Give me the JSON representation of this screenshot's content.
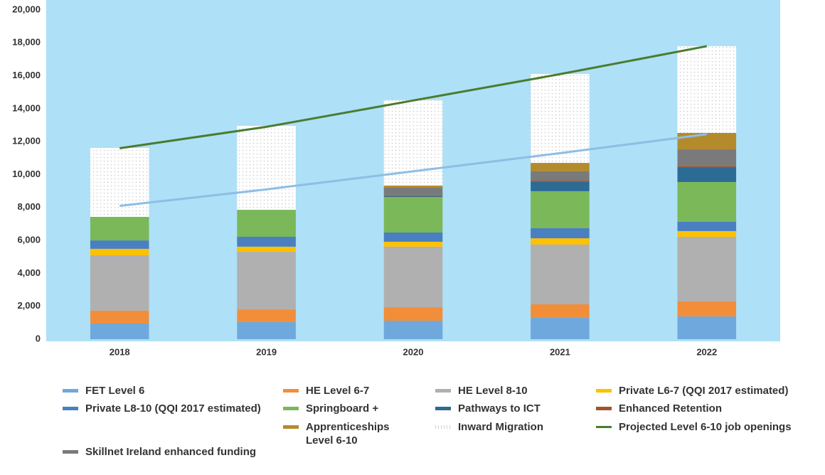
{
  "chart_data": {
    "type": "bar",
    "categories": [
      "2018",
      "2019",
      "2020",
      "2021",
      "2022"
    ],
    "ylim": [
      0,
      20000
    ],
    "yticks": [
      0,
      {
        "value": 2000,
        "label": "2,000"
      },
      {
        "value": 4000,
        "label": "4,000"
      },
      {
        "value": 6000,
        "label": "6,000"
      },
      {
        "value": 8000,
        "label": "8,000"
      },
      {
        "value": 10000,
        "label": "10,000"
      },
      {
        "value": 12000,
        "label": "12,000"
      },
      {
        "value": 14000,
        "label": "14,000"
      },
      {
        "value": 16000,
        "label": "16,000"
      },
      {
        "value": 18000,
        "label": "18,000"
      },
      {
        "value": 20000,
        "label": "20,000"
      }
    ],
    "grid": false,
    "background": "#aee0f7",
    "series": [
      {
        "name": "FET Level 6",
        "color": "#6fa8dc",
        "values": [
          950,
          1040,
          1120,
          1300,
          1380
        ]
      },
      {
        "name": "HE Level 6-7",
        "color": "#f28e3a",
        "values": [
          780,
          770,
          820,
          820,
          910
        ]
      },
      {
        "name": "HE Level 8-10",
        "color": "#b0b0b0",
        "values": [
          3370,
          3500,
          3680,
          3630,
          3930
        ]
      },
      {
        "name": "Private L6-7 (QQI 2017 estimated)",
        "color": "#ffc000",
        "values": [
          390,
          310,
          300,
          380,
          350
        ]
      },
      {
        "name": "Private L8-10 (QQI 2017 estimated)",
        "color": "#4a7fc1",
        "values": [
          510,
          600,
          560,
          610,
          560
        ]
      },
      {
        "name": "Springboard +",
        "color": "#7ab85a",
        "values": [
          1430,
          1640,
          2160,
          2250,
          2420
        ]
      },
      {
        "name": "Pathways to ICT",
        "color": "#2b6b94",
        "values": [
          0,
          0,
          50,
          560,
          860
        ]
      },
      {
        "name": "Enhanced Retention",
        "color": "#a5522a",
        "values": [
          0,
          0,
          40,
          80,
          90
        ]
      },
      {
        "name": "Skillnet Ireland enhanced funding",
        "color": "#7a7a7a",
        "values": [
          0,
          0,
          470,
          570,
          1030
        ]
      },
      {
        "name": "Apprenticeships Level 6-10",
        "color": "#b38b2d",
        "values": [
          0,
          0,
          130,
          510,
          1000
        ]
      },
      {
        "name": "Inward Migration",
        "color": "pattern",
        "values": [
          4190,
          5100,
          5190,
          5400,
          5270
        ]
      },
      {
        "name": "Projected Level 6-10 job openings",
        "type": "line",
        "color": "#4a7c2f",
        "values": [
          11600,
          12900,
          14500,
          16100,
          17800
        ]
      },
      {
        "type": "line",
        "color": "#8fbde3",
        "values": [
          8100,
          9100,
          10200,
          11300,
          12450
        ]
      }
    ]
  }
}
